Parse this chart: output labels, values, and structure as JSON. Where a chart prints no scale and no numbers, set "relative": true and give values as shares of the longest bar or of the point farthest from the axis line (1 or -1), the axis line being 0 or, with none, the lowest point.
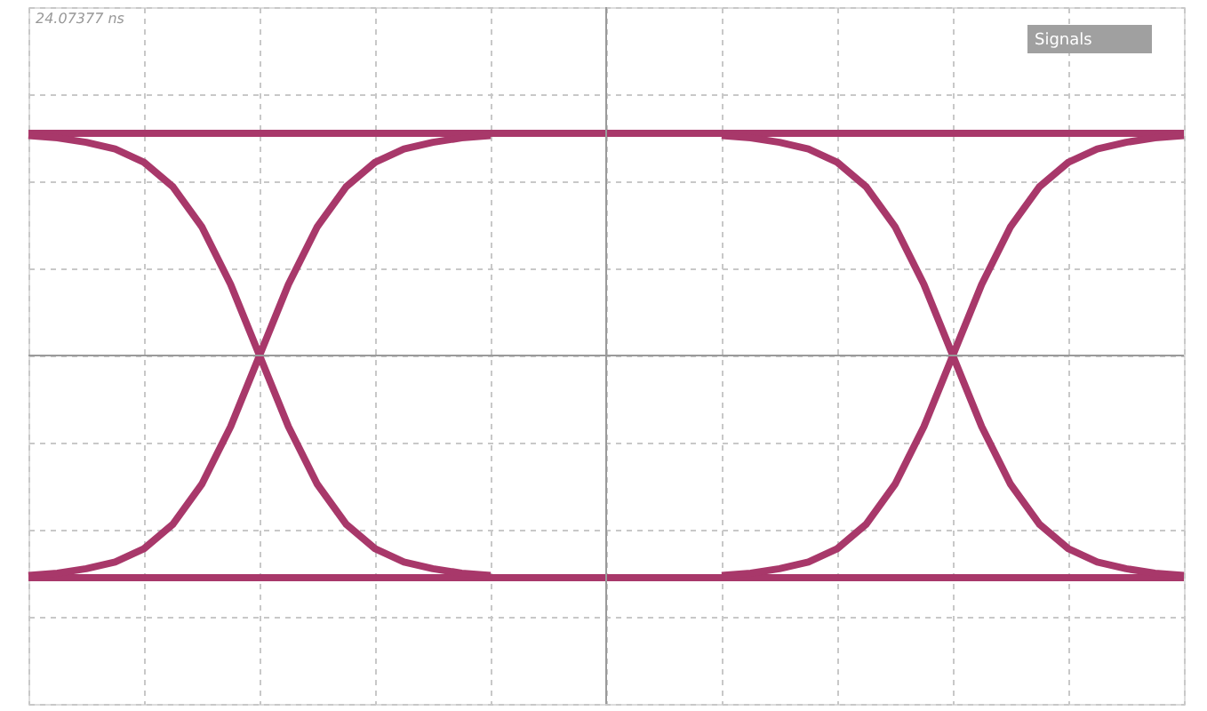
{
  "chart_data": {
    "type": "line",
    "relative": true,
    "grid": true,
    "marker": "none",
    "line_style": "solid",
    "categories": [
      null,
      null,
      null,
      null,
      null,
      null,
      null,
      null,
      null,
      null,
      null,
      null,
      null,
      null,
      null,
      null,
      null,
      null,
      null,
      null,
      null,
      null,
      null,
      null,
      null,
      null,
      null,
      null,
      null,
      null,
      null,
      null,
      null,
      null,
      null,
      null,
      null,
      null,
      null,
      null,
      null
    ],
    "series": [
      {
        "color": "#a8386a",
        "values": [
          1,
          1,
          1,
          1,
          1,
          1,
          1,
          1,
          1,
          1,
          1,
          1,
          1,
          1,
          1,
          1,
          1,
          1,
          1,
          1,
          1,
          1,
          1,
          1,
          1,
          1,
          1,
          1,
          1,
          1,
          1,
          1,
          1,
          1,
          1,
          1,
          1,
          1,
          1,
          1,
          1
        ]
      },
      {
        "color": "#a8386a",
        "values": [
          -1,
          -1,
          -1,
          -1,
          -1,
          -1,
          -1,
          -1,
          -1,
          -1,
          -1,
          -1,
          -1,
          -1,
          -1,
          -1,
          -1,
          -1,
          -1,
          -1,
          -1,
          -1,
          -1,
          -1,
          -1,
          -1,
          -1,
          -1,
          -1,
          -1,
          -1,
          -1,
          -1,
          -1,
          -1,
          -1,
          -1,
          -1,
          -1,
          -1,
          -1
        ]
      },
      {
        "color": "#a8386a",
        "values": [
          0.99,
          0.98,
          0.96,
          0.93,
          0.87,
          0.76,
          0.58,
          0.32,
          0,
          -0.32,
          -0.58,
          -0.76,
          -0.87,
          -0.93,
          -0.96,
          -0.98,
          -0.99,
          null,
          null,
          null,
          null,
          null,
          null,
          null,
          null,
          null,
          null,
          null,
          null,
          null,
          null,
          null,
          null,
          null,
          null,
          null,
          null,
          null,
          null,
          null,
          null
        ]
      },
      {
        "color": "#a8386a",
        "values": [
          -0.99,
          -0.98,
          -0.96,
          -0.93,
          -0.87,
          -0.76,
          -0.58,
          -0.32,
          0,
          0.32,
          0.58,
          0.76,
          0.87,
          0.93,
          0.96,
          0.98,
          0.99,
          null,
          null,
          null,
          null,
          null,
          null,
          null,
          null,
          null,
          null,
          null,
          null,
          null,
          null,
          null,
          null,
          null,
          null,
          null,
          null,
          null,
          null,
          null,
          null
        ]
      },
      {
        "color": "#a8386a",
        "values": [
          null,
          null,
          null,
          null,
          null,
          null,
          null,
          null,
          null,
          null,
          null,
          null,
          null,
          null,
          null,
          null,
          null,
          null,
          null,
          null,
          null,
          null,
          null,
          null,
          0.99,
          0.98,
          0.96,
          0.93,
          0.87,
          0.76,
          0.58,
          0.32,
          0,
          -0.32,
          -0.58,
          -0.76,
          -0.87,
          -0.93,
          -0.96,
          -0.98,
          -0.99
        ]
      },
      {
        "color": "#a8386a",
        "values": [
          null,
          null,
          null,
          null,
          null,
          null,
          null,
          null,
          null,
          null,
          null,
          null,
          null,
          null,
          null,
          null,
          null,
          null,
          null,
          null,
          null,
          null,
          null,
          null,
          -0.99,
          -0.98,
          -0.96,
          -0.93,
          -0.87,
          -0.76,
          -0.58,
          -0.32,
          0,
          0.32,
          0.58,
          0.76,
          0.87,
          0.93,
          0.96,
          0.98,
          0.99
        ]
      }
    ],
    "annotations": [
      "24.07377 ns",
      "Signals"
    ]
  }
}
